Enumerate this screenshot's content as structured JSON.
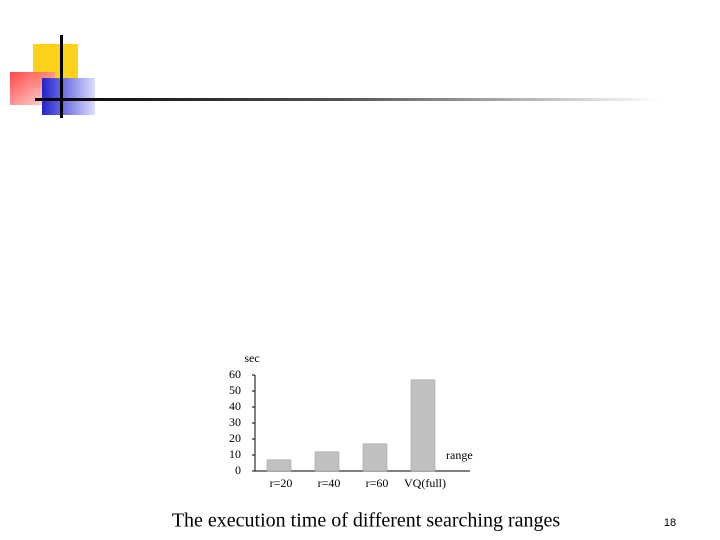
{
  "chart_data": {
    "type": "bar",
    "y_label": "sec",
    "x_label": "range",
    "categories": [
      "r=20",
      "r=40",
      "r=60",
      "VQ(full)"
    ],
    "values": [
      7,
      12,
      17,
      57
    ],
    "color": "#c0c0c0",
    "ylim": [
      0,
      60
    ],
    "yticks": [
      0,
      10,
      20,
      30,
      40,
      50,
      60
    ],
    "grid": false
  },
  "caption": "The execution time of different searching ranges",
  "page_number": "18"
}
